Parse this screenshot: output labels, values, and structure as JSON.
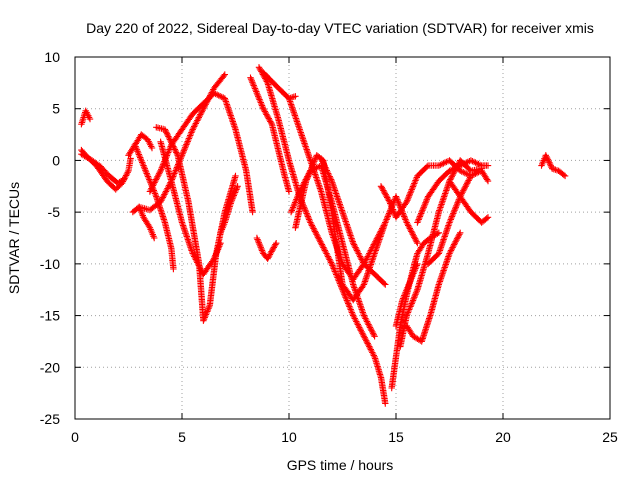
{
  "chart_data": {
    "type": "scatter",
    "title": "Day 220 of 2022, Sidereal Day-to-day VTEC variation (SDTVAR) for receiver xmis",
    "xlabel": "GPS time / hours",
    "ylabel": "SDTVAR / TECUs",
    "xlim": [
      0,
      25
    ],
    "ylim": [
      -25,
      10
    ],
    "xticks": [
      0,
      5,
      10,
      15,
      20,
      25
    ],
    "yticks": [
      -25,
      -20,
      -15,
      -10,
      -5,
      0,
      5,
      10
    ],
    "xtick_labels": [
      "0",
      "5",
      "10",
      "15",
      "20",
      "25"
    ],
    "ytick_labels": [
      "-25",
      "-20",
      "-15",
      "-10",
      "-5",
      "0",
      "5",
      "10"
    ],
    "grid": true,
    "legend": "none",
    "marker": "+",
    "color": "#ff0000",
    "series": [
      {
        "x": [
          0.3,
          0.5,
          1.0,
          1.5,
          1.9,
          2.2,
          2.5,
          2.6
        ],
        "y": [
          1.0,
          0.5,
          -0.5,
          -2.0,
          -2.8,
          -2.2,
          -1.0,
          0.2
        ]
      },
      {
        "x": [
          0.3,
          0.5,
          0.7
        ],
        "y": [
          3.5,
          4.8,
          4.0
        ]
      },
      {
        "x": [
          0.3,
          0.8,
          1.2,
          1.6,
          2.0,
          2.3
        ],
        "y": [
          0.6,
          0.0,
          -0.6,
          -1.5,
          -2.2,
          -1.8
        ]
      },
      {
        "x": [
          2.5,
          2.8,
          3.1,
          3.4,
          3.6
        ],
        "y": [
          0.5,
          1.5,
          2.5,
          2.0,
          1.2
        ]
      },
      {
        "x": [
          2.7,
          3.0,
          3.5,
          4.0,
          4.5,
          5.0,
          5.5,
          6.0,
          6.5,
          7.0
        ],
        "y": [
          -5.0,
          -4.5,
          -4.8,
          -4.0,
          -2.0,
          0.5,
          3.0,
          5.0,
          7.0,
          8.3
        ]
      },
      {
        "x": [
          2.8,
          3.2,
          3.5,
          3.8,
          4.2,
          4.5,
          4.6
        ],
        "y": [
          1.5,
          -0.5,
          -2.0,
          -3.5,
          -6.0,
          -8.5,
          -10.5
        ]
      },
      {
        "x": [
          3.0,
          3.2,
          3.5,
          3.7
        ],
        "y": [
          -4.5,
          -5.5,
          -6.5,
          -7.5
        ]
      },
      {
        "x": [
          3.5,
          4.0,
          4.5,
          5.0,
          5.5,
          6.0,
          6.5,
          7.0,
          7.5,
          8.0,
          8.3
        ],
        "y": [
          -3.0,
          -1.0,
          1.5,
          3.0,
          4.5,
          5.5,
          6.5,
          6.0,
          3.0,
          -1.0,
          -5.0
        ]
      },
      {
        "x": [
          3.8,
          4.2,
          4.8,
          5.3,
          5.8,
          6.0,
          6.3,
          6.6,
          7.0,
          7.5
        ],
        "y": [
          3.2,
          3.0,
          0.5,
          -4.0,
          -10.0,
          -15.5,
          -14.0,
          -9.0,
          -5.0,
          -1.5
        ]
      },
      {
        "x": [
          4.0,
          4.5,
          5.0,
          5.5,
          6.0,
          6.5,
          6.8
        ],
        "y": [
          1.8,
          -2.0,
          -6.0,
          -9.0,
          -11.0,
          -9.5,
          -8.0
        ]
      },
      {
        "x": [
          6.8,
          7.0,
          7.3,
          7.6
        ],
        "y": [
          -7.0,
          -6.0,
          -4.0,
          -2.5
        ]
      },
      {
        "x": [
          8.2,
          8.5,
          8.8,
          9.2,
          9.5,
          9.8,
          10.0
        ],
        "y": [
          8.0,
          6.5,
          5.0,
          3.5,
          1.0,
          -1.5,
          -3.0
        ]
      },
      {
        "x": [
          8.5,
          8.8,
          9.0,
          9.4
        ],
        "y": [
          -7.5,
          -9.0,
          -9.5,
          -8.0
        ]
      },
      {
        "x": [
          8.6,
          9.0,
          9.5,
          10.0,
          10.5,
          11.0,
          11.5,
          12.0,
          12.5,
          13.0,
          13.5,
          14.0,
          14.3,
          14.5
        ],
        "y": [
          9.0,
          7.5,
          4.0,
          0.0,
          -3.5,
          -6.0,
          -8.0,
          -10.0,
          -12.5,
          -15.0,
          -17.0,
          -19.0,
          -21.0,
          -23.5
        ]
      },
      {
        "x": [
          8.8,
          9.5,
          10.0,
          10.3
        ],
        "y": [
          8.5,
          7.0,
          6.0,
          6.2
        ]
      },
      {
        "x": [
          10.1,
          10.5,
          11.0,
          11.5,
          12.0,
          12.5,
          13.0,
          13.5,
          14.0
        ],
        "y": [
          -5.0,
          -3.0,
          -1.0,
          -0.5,
          -4.0,
          -8.0,
          -12.0,
          -15.0,
          -17.0
        ]
      },
      {
        "x": [
          10.3,
          10.8,
          11.3,
          11.6,
          12.0,
          12.5,
          13.0,
          13.5,
          14.0,
          14.5,
          15.0,
          15.5,
          16.0
        ],
        "y": [
          -6.5,
          -2.0,
          0.5,
          0.0,
          -5.0,
          -12.0,
          -13.5,
          -12.0,
          -9.0,
          -6.0,
          -3.5,
          -6.0,
          -8.0
        ]
      },
      {
        "x": [
          10.0,
          10.5,
          11.0,
          11.5,
          12.0,
          12.5,
          13.0,
          13.5,
          14.0,
          14.5
        ],
        "y": [
          6.0,
          3.0,
          0.0,
          -3.0,
          -7.0,
          -10.0,
          -11.5,
          -10.0,
          -8.0,
          -6.0
        ]
      },
      {
        "x": [
          11.5,
          12.0,
          12.5,
          13.0,
          13.5,
          14.0,
          14.5
        ],
        "y": [
          0.2,
          -2.0,
          -5.0,
          -8.0,
          -10.0,
          -11.0,
          -12.0
        ]
      },
      {
        "x": [
          14.3,
          14.7,
          15.0,
          15.5,
          16.0,
          16.5,
          17.0,
          17.5,
          18.0,
          18.5
        ],
        "y": [
          -2.5,
          -4.0,
          -5.5,
          -4.0,
          -1.5,
          -0.5,
          -0.5,
          0.0,
          -1.0,
          -1.5
        ]
      },
      {
        "x": [
          14.8,
          15.0,
          15.2,
          15.5,
          15.8,
          16.0,
          16.3,
          16.6,
          17.0
        ],
        "y": [
          -22.0,
          -19.0,
          -16.0,
          -13.0,
          -10.5,
          -9.0,
          -8.0,
          -7.5,
          -7.0
        ]
      },
      {
        "x": [
          15.0,
          15.3,
          15.6,
          16.0
        ],
        "y": [
          -16.0,
          -13.5,
          -12.0,
          -10.0
        ]
      },
      {
        "x": [
          15.2,
          15.5,
          16.0,
          16.5,
          17.0,
          17.5,
          18.0,
          18.5,
          19.0
        ],
        "y": [
          -18.0,
          -15.0,
          -12.5,
          -9.0,
          -5.0,
          -2.0,
          0.0,
          -1.0,
          -0.8
        ]
      },
      {
        "x": [
          15.5,
          15.8,
          16.2,
          16.6,
          17.0,
          17.5,
          18.0
        ],
        "y": [
          -16.0,
          -17.0,
          -17.5,
          -15.0,
          -12.0,
          -9.0,
          -7.0
        ]
      },
      {
        "x": [
          16.0,
          16.5,
          17.0,
          17.5,
          18.0,
          18.5,
          19.0,
          19.3
        ],
        "y": [
          -6.0,
          -3.5,
          -2.0,
          -1.0,
          -0.5,
          0.0,
          -0.5,
          -0.5
        ]
      },
      {
        "x": [
          16.5,
          17.0,
          17.5,
          18.0,
          18.5,
          19.0,
          19.3
        ],
        "y": [
          -10.0,
          -9.0,
          -6.0,
          -3.5,
          -1.5,
          -1.0,
          -2.0
        ]
      },
      {
        "x": [
          17.5,
          18.0,
          18.5,
          19.0,
          19.3
        ],
        "y": [
          -2.0,
          -3.5,
          -5.0,
          -6.0,
          -5.5
        ]
      },
      {
        "x": [
          21.8,
          22.0,
          22.3,
          22.6,
          22.9
        ],
        "y": [
          -0.5,
          0.5,
          -0.8,
          -1.0,
          -1.5
        ]
      }
    ]
  }
}
